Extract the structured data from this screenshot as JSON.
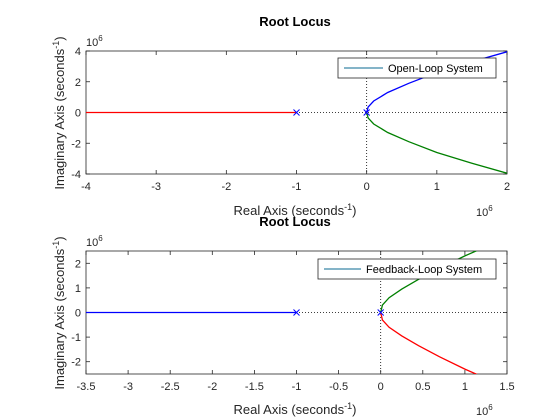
{
  "colors": {
    "branch_red": "#ff0000",
    "branch_blue": "#0000ff",
    "branch_green": "#008000",
    "legend_line": "#3a88a8",
    "axes": "#262626"
  },
  "chart_data": [
    {
      "type": "line",
      "title": "Root Locus",
      "xlabel": "Real Axis (seconds",
      "ylabel": "Imaginary Axis (seconds",
      "unit_exponent": "-1",
      "scale_factor": "10",
      "scale_exponent": "6",
      "xlim": [
        -4,
        2
      ],
      "ylim": [
        -4,
        4
      ],
      "xticks": [
        -4,
        -3,
        -2,
        -1,
        0,
        1,
        2
      ],
      "xtick_labels": [
        "-4",
        "-3",
        "-2",
        "-1",
        "0",
        "1",
        "2"
      ],
      "yticks": [
        -4,
        -2,
        0,
        2,
        4
      ],
      "ytick_labels": [
        "-4",
        "-2",
        "0",
        "2",
        "4"
      ],
      "legend": [
        "Open-Loop System"
      ],
      "legend_placement": "top-right",
      "poles": [
        [
          -1,
          0
        ],
        [
          0,
          0
        ]
      ],
      "series": [
        {
          "color": "branch_red",
          "x": [
            -4,
            -1
          ],
          "y": [
            0,
            0
          ]
        },
        {
          "color": "branch_blue",
          "x": [
            0,
            0.02,
            0.1,
            0.3,
            0.6,
            1.0,
            1.5,
            2.0
          ],
          "y": [
            0,
            0.35,
            0.75,
            1.3,
            1.9,
            2.6,
            3.3,
            3.95
          ]
        },
        {
          "color": "branch_green",
          "x": [
            0,
            0.02,
            0.1,
            0.3,
            0.6,
            1.0,
            1.5,
            2.0
          ],
          "y": [
            0,
            -0.35,
            -0.75,
            -1.3,
            -1.9,
            -2.6,
            -3.3,
            -3.95
          ]
        }
      ]
    },
    {
      "type": "line",
      "title": "Root Locus",
      "xlabel": "Real Axis (seconds",
      "ylabel": "Imaginary Axis (seconds",
      "unit_exponent": "-1",
      "scale_factor": "10",
      "scale_exponent": "6",
      "xlim": [
        -3.5,
        1.5
      ],
      "ylim": [
        -2.5,
        2.5
      ],
      "xticks": [
        -3.5,
        -3,
        -2.5,
        -2,
        -1.5,
        -1,
        -0.5,
        0,
        0.5,
        1,
        1.5
      ],
      "xtick_labels": [
        "-3.5",
        "-3",
        "-2.5",
        "-2",
        "-1.5",
        "-1",
        "-0.5",
        "0",
        "0.5",
        "1",
        "1.5"
      ],
      "yticks": [
        -2,
        -1,
        0,
        1,
        2
      ],
      "ytick_labels": [
        "-2",
        "-1",
        "0",
        "1",
        "2"
      ],
      "legend": [
        "Feedback-Loop System"
      ],
      "legend_placement": "top-right",
      "poles": [
        [
          -1,
          0
        ],
        [
          0,
          0
        ]
      ],
      "series": [
        {
          "color": "branch_blue",
          "x": [
            -3.5,
            -1
          ],
          "y": [
            0,
            0
          ]
        },
        {
          "color": "branch_green",
          "x": [
            0,
            0.02,
            0.1,
            0.25,
            0.45,
            0.7,
            1.0,
            1.2
          ],
          "y": [
            0,
            0.3,
            0.6,
            0.95,
            1.35,
            1.8,
            2.3,
            2.6
          ]
        },
        {
          "color": "branch_red",
          "x": [
            0,
            0.02,
            0.1,
            0.25,
            0.45,
            0.7,
            1.0,
            1.2
          ],
          "y": [
            0,
            -0.3,
            -0.6,
            -0.95,
            -1.35,
            -1.8,
            -2.3,
            -2.6
          ]
        }
      ]
    }
  ]
}
